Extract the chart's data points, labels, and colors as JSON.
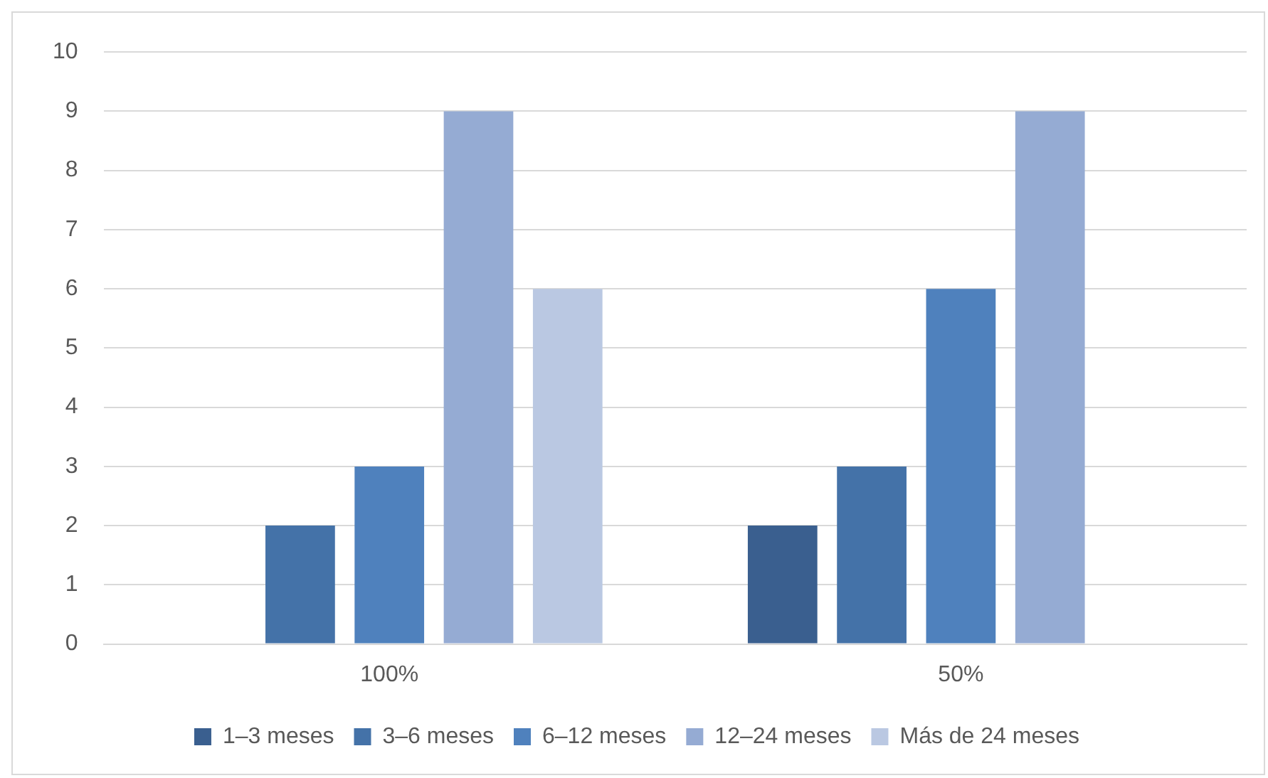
{
  "chart_data": {
    "type": "bar",
    "categories": [
      "100%",
      "50%"
    ],
    "series": [
      {
        "name": "1–3 meses",
        "color": "#3a5f8f",
        "values": [
          0,
          2
        ]
      },
      {
        "name": "3–6 meses",
        "color": "#4472a8",
        "values": [
          2,
          3
        ]
      },
      {
        "name": "6–12 meses",
        "color": "#4f81bd",
        "values": [
          3,
          6
        ]
      },
      {
        "name": "12–24 meses",
        "color": "#95abd3",
        "values": [
          9,
          9
        ]
      },
      {
        "name": "Más de 24 meses",
        "color": "#bac8e2",
        "values": [
          6,
          0
        ]
      }
    ],
    "ylim": [
      0,
      10
    ],
    "yticks": [
      0,
      1,
      2,
      3,
      4,
      5,
      6,
      7,
      8,
      9,
      10
    ],
    "grid": "y",
    "legend": "bottom"
  }
}
